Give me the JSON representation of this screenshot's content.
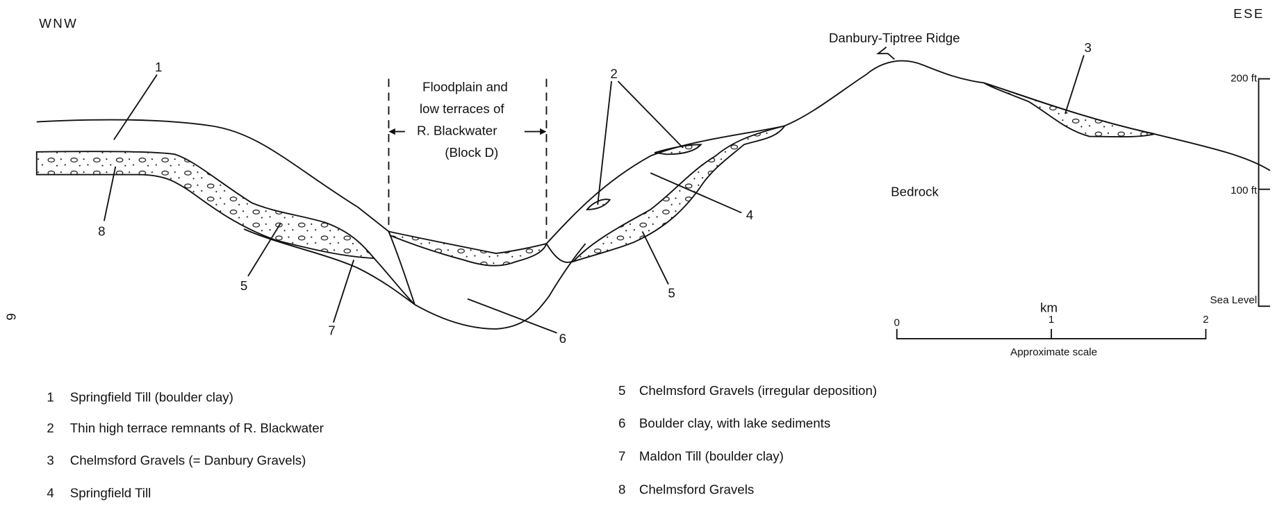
{
  "orientation": {
    "left": "WNW",
    "right": "ESE"
  },
  "annotations": {
    "ridge": "Danbury-Tiptree Ridge",
    "floodplain": [
      "Floodplain and",
      "low terraces of",
      "R. Blackwater",
      "(Block D)"
    ],
    "bedrock": "Bedrock"
  },
  "callouts": [
    "1",
    "2",
    "3",
    "4",
    "5",
    "5",
    "6",
    "7",
    "8"
  ],
  "height_scale": [
    "200 ft",
    "100 ft",
    "Sea Level"
  ],
  "distance_scale": {
    "unit": "km",
    "ticks": [
      0,
      1,
      2
    ],
    "caption": "Approximate scale"
  },
  "page_number": "9",
  "legend": [
    {
      "number": "1",
      "text": "Springfield Till (boulder clay)"
    },
    {
      "number": "2",
      "text": "Thin high terrace remnants of R. Blackwater"
    },
    {
      "number": "3",
      "text": "Chelmsford Gravels (= Danbury Gravels)"
    },
    {
      "number": "4",
      "text": "Springfield Till"
    },
    {
      "number": "5",
      "text": "Chelmsford Gravels (irregular deposition)"
    },
    {
      "number": "6",
      "text": "Boulder clay, with lake sediments"
    },
    {
      "number": "7",
      "text": "Maldon Till (boulder clay)"
    },
    {
      "number": "8",
      "text": "Chelmsford Gravels"
    }
  ]
}
